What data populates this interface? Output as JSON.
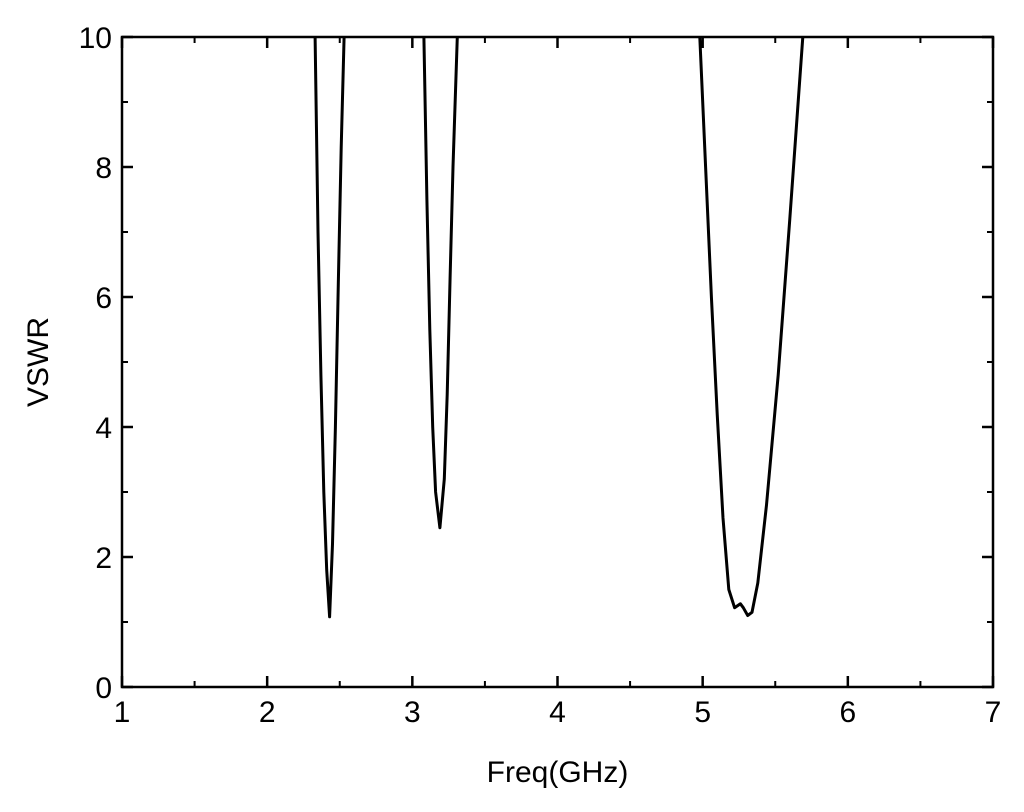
{
  "chart_data": {
    "type": "line",
    "title": "",
    "xlabel": "Freq(GHz)",
    "ylabel": "VSWR",
    "xlim": [
      1,
      7
    ],
    "ylim": [
      0,
      10
    ],
    "x_ticks": [
      1,
      2,
      3,
      4,
      5,
      6,
      7
    ],
    "y_ticks": [
      0,
      2,
      4,
      6,
      8,
      10
    ],
    "x_minor_step": 0.5,
    "y_minor_step": 1,
    "grid": false,
    "legend": "none",
    "line_color": "#000000",
    "series": [
      {
        "segments": [
          [
            [
              2.33,
              10
            ],
            [
              2.35,
              7.0
            ],
            [
              2.37,
              4.8
            ],
            [
              2.39,
              3.0
            ],
            [
              2.41,
              1.8
            ],
            [
              2.43,
              1.08
            ],
            [
              2.45,
              2.2
            ],
            [
              2.47,
              4.0
            ],
            [
              2.49,
              6.2
            ],
            [
              2.51,
              8.3
            ],
            [
              2.53,
              10
            ]
          ],
          [
            [
              3.08,
              10
            ],
            [
              3.1,
              7.5
            ],
            [
              3.12,
              5.5
            ],
            [
              3.14,
              4.0
            ],
            [
              3.16,
              3.0
            ],
            [
              3.19,
              2.45
            ],
            [
              3.22,
              3.2
            ],
            [
              3.24,
              4.5
            ],
            [
              3.26,
              6.3
            ],
            [
              3.28,
              8.0
            ],
            [
              3.31,
              10
            ]
          ],
          [
            [
              4.98,
              10
            ],
            [
              5.02,
              8.0
            ],
            [
              5.06,
              6.0
            ],
            [
              5.1,
              4.2
            ],
            [
              5.14,
              2.6
            ],
            [
              5.18,
              1.5
            ],
            [
              5.22,
              1.22
            ],
            [
              5.26,
              1.28
            ],
            [
              5.28,
              1.22
            ],
            [
              5.31,
              1.1
            ],
            [
              5.34,
              1.15
            ],
            [
              5.38,
              1.6
            ],
            [
              5.44,
              2.8
            ],
            [
              5.52,
              4.8
            ],
            [
              5.6,
              7.2
            ],
            [
              5.69,
              10
            ]
          ]
        ]
      }
    ]
  }
}
